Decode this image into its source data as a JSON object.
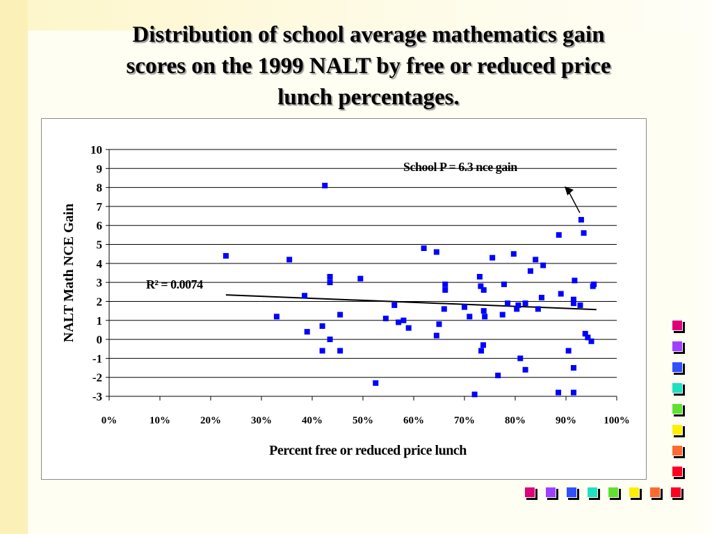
{
  "slide": {
    "title_lines": [
      "Distribution of school average mathematics gain",
      "scores on the 1999 NALT by free or reduced price",
      "lunch percentages."
    ]
  },
  "chart_data": {
    "type": "scatter",
    "title": "",
    "xlabel": "Percent free or reduced price lunch",
    "ylabel": "NALT Math NCE Gain",
    "xlim": [
      0,
      1
    ],
    "ylim": [
      -3,
      10
    ],
    "x_tick_labels": [
      "0%",
      "10%",
      "20%",
      "30%",
      "40%",
      "50%",
      "60%",
      "70%",
      "80%",
      "90%",
      "100%"
    ],
    "y_tick_labels": [
      "10",
      "9",
      "8",
      "7",
      "6",
      "5",
      "4",
      "3",
      "2",
      "1",
      "0",
      "-1",
      "-2",
      "-3"
    ],
    "grid": "horizontal",
    "marker_color": "#0000ff",
    "points": [
      [
        0.23,
        4.4
      ],
      [
        0.33,
        1.2
      ],
      [
        0.355,
        4.2
      ],
      [
        0.385,
        2.3
      ],
      [
        0.39,
        0.4
      ],
      [
        0.42,
        0.7
      ],
      [
        0.42,
        -0.6
      ],
      [
        0.425,
        8.1
      ],
      [
        0.435,
        0.0
      ],
      [
        0.435,
        3.0
      ],
      [
        0.435,
        3.3
      ],
      [
        0.455,
        1.3
      ],
      [
        0.455,
        -0.6
      ],
      [
        0.495,
        3.2
      ],
      [
        0.525,
        -2.3
      ],
      [
        0.545,
        1.1
      ],
      [
        0.562,
        1.8
      ],
      [
        0.57,
        0.9
      ],
      [
        0.58,
        1.0
      ],
      [
        0.59,
        0.6
      ],
      [
        0.62,
        4.8
      ],
      [
        0.645,
        4.6
      ],
      [
        0.645,
        0.2
      ],
      [
        0.65,
        0.8
      ],
      [
        0.66,
        1.6
      ],
      [
        0.662,
        2.6
      ],
      [
        0.662,
        2.9
      ],
      [
        0.7,
        1.7
      ],
      [
        0.71,
        1.2
      ],
      [
        0.72,
        -2.9
      ],
      [
        0.73,
        3.3
      ],
      [
        0.732,
        2.8
      ],
      [
        0.733,
        -0.6
      ],
      [
        0.737,
        -0.3
      ],
      [
        0.738,
        2.6
      ],
      [
        0.738,
        1.5
      ],
      [
        0.74,
        1.2
      ],
      [
        0.755,
        4.3
      ],
      [
        0.766,
        -1.9
      ],
      [
        0.775,
        1.3
      ],
      [
        0.778,
        2.9
      ],
      [
        0.785,
        1.9
      ],
      [
        0.797,
        4.5
      ],
      [
        0.803,
        1.6
      ],
      [
        0.806,
        1.8
      ],
      [
        0.81,
        -1.0
      ],
      [
        0.82,
        -1.6
      ],
      [
        0.82,
        1.9
      ],
      [
        0.83,
        3.6
      ],
      [
        0.84,
        4.2
      ],
      [
        0.845,
        1.6
      ],
      [
        0.852,
        2.2
      ],
      [
        0.855,
        3.9
      ],
      [
        0.885,
        -2.8
      ],
      [
        0.886,
        5.5
      ],
      [
        0.89,
        2.4
      ],
      [
        0.905,
        -0.6
      ],
      [
        0.915,
        -1.5
      ],
      [
        0.915,
        -2.8
      ],
      [
        0.915,
        2.1
      ],
      [
        0.915,
        1.9
      ],
      [
        0.917,
        3.1
      ],
      [
        0.928,
        1.8
      ],
      [
        0.93,
        6.3
      ],
      [
        0.935,
        5.6
      ],
      [
        0.938,
        0.3
      ],
      [
        0.943,
        0.1
      ],
      [
        0.95,
        -0.1
      ],
      [
        0.953,
        2.8
      ],
      [
        0.955,
        2.9
      ]
    ],
    "trendline": {
      "x": [
        0.23,
        0.96
      ],
      "y": [
        2.34,
        1.57
      ],
      "color": "#000000"
    },
    "annotations": {
      "r2_label": "R² = 0.0074",
      "callout_text": "School P = 6.3 nce gain",
      "callout_point": [
        0.93,
        6.3
      ]
    }
  },
  "decor": {
    "square_colors": [
      "#e0007a",
      "#a040ff",
      "#3050ff",
      "#20e0c0",
      "#60e030",
      "#ffee00",
      "#ff6a30",
      "#ff0020"
    ]
  }
}
